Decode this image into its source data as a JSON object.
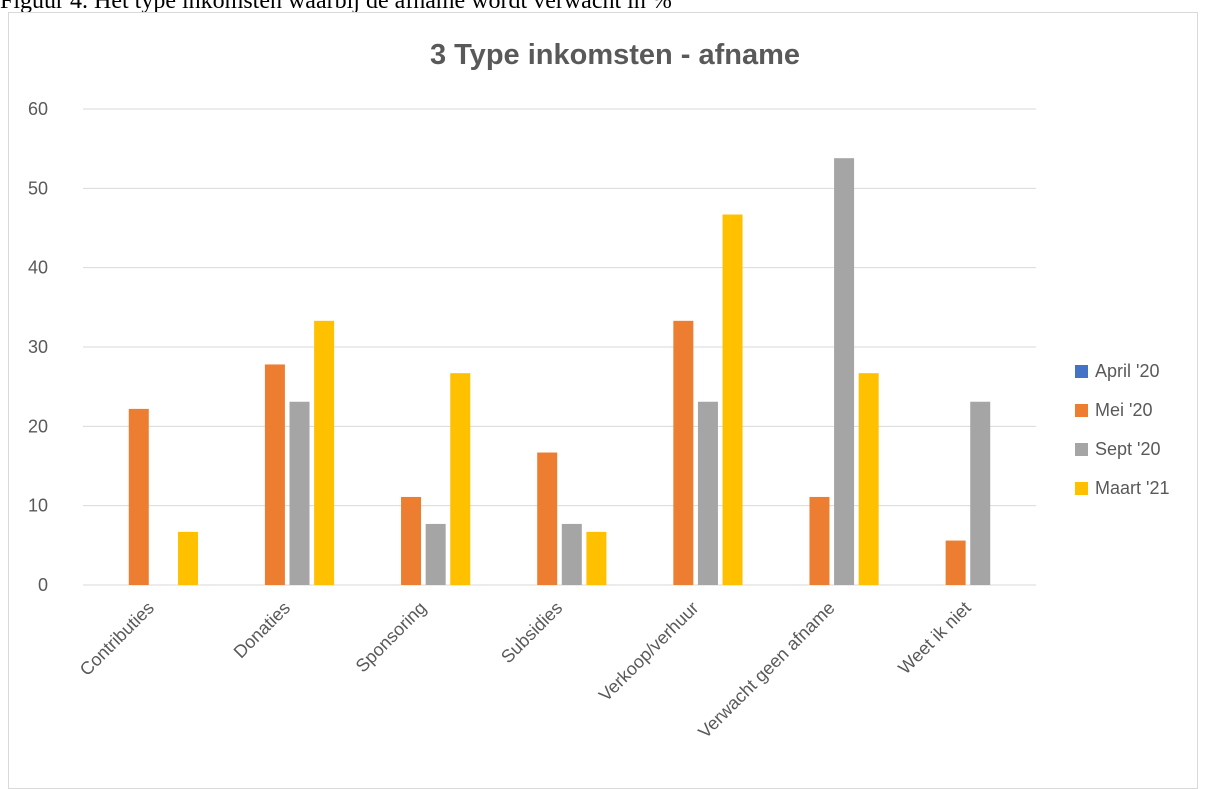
{
  "caption": "Figuur 4. Het type inkomsten waarbij de afname wordt verwacht in %",
  "chart_data": {
    "type": "bar",
    "title": "3 Type inkomsten - afname",
    "xlabel": "",
    "ylabel": "",
    "ylim": [
      0,
      60
    ],
    "yticks": [
      0,
      10,
      20,
      30,
      40,
      50,
      60
    ],
    "grid": true,
    "legend_position": "right",
    "categories": [
      "Contributies",
      "Donaties",
      "Sponsoring",
      "Subsidies",
      "Verkoop/verhuur",
      "Verwacht geen afname",
      "Weet ik niet"
    ],
    "series": [
      {
        "name": "April '20",
        "color": "#4472c4",
        "values": [
          0,
          0,
          0,
          0,
          0,
          0,
          0
        ]
      },
      {
        "name": "Mei '20",
        "color": "#ed7d31",
        "values": [
          22.2,
          27.8,
          11.1,
          16.7,
          33.3,
          11.1,
          5.6
        ]
      },
      {
        "name": "Sept '20",
        "color": "#a5a5a5",
        "values": [
          0,
          23.1,
          7.7,
          7.7,
          23.1,
          53.8,
          23.1
        ]
      },
      {
        "name": "Maart '21",
        "color": "#ffc000",
        "values": [
          6.7,
          33.3,
          26.7,
          6.7,
          46.7,
          26.7,
          0
        ]
      }
    ]
  }
}
